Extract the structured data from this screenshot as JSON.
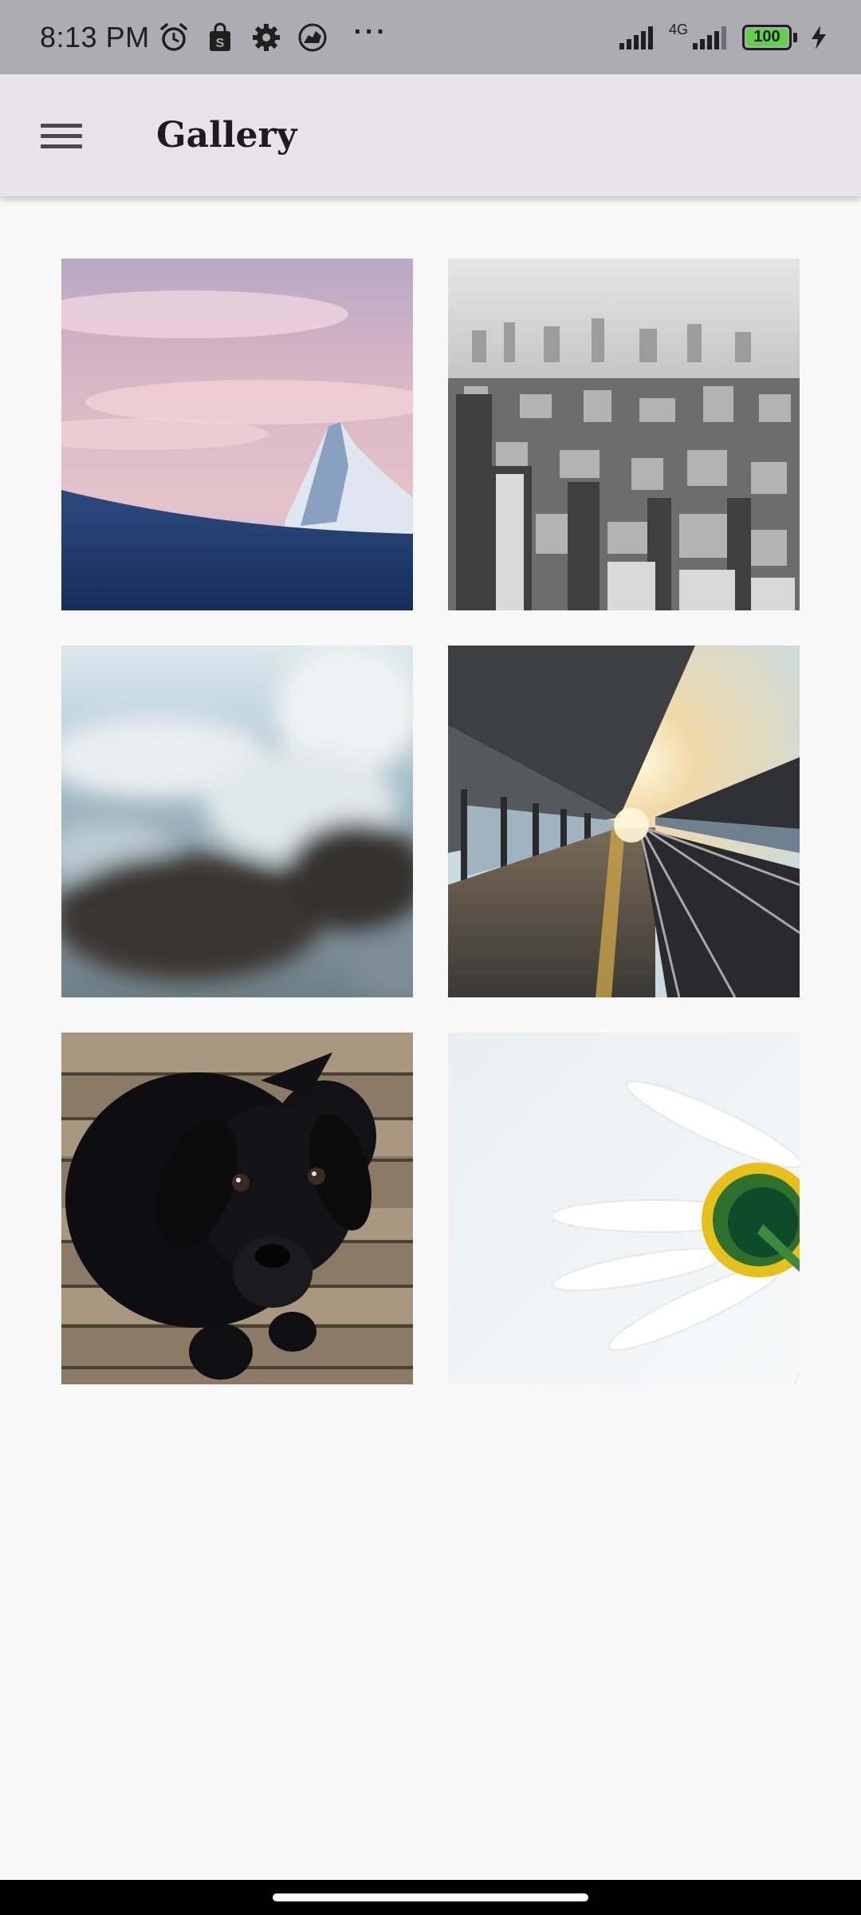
{
  "status_bar": {
    "time": "8:13 PM",
    "left_icons": [
      "alarm-icon",
      "shopping-bag-icon",
      "gear-icon",
      "dinosaur-app-icon"
    ],
    "more": "···",
    "network_type": "4G",
    "battery_level": "100",
    "colors": {
      "background": "#adabb3",
      "battery_fill": "#5fd24a"
    }
  },
  "app_bar": {
    "menu_icon": "hamburger-menu-icon",
    "title": "Gallery",
    "background": "#e7e2ec"
  },
  "gallery": {
    "photos": [
      {
        "subject": "mountain-peak-at-dusk"
      },
      {
        "subject": "black-and-white-city-skyline"
      },
      {
        "subject": "blurred-ocean-wave-on-rocks"
      },
      {
        "subject": "train-station-platform-at-sunset"
      },
      {
        "subject": "black-labrador-puppy-on-wood"
      },
      {
        "subject": "white-daisy-flower"
      }
    ]
  }
}
